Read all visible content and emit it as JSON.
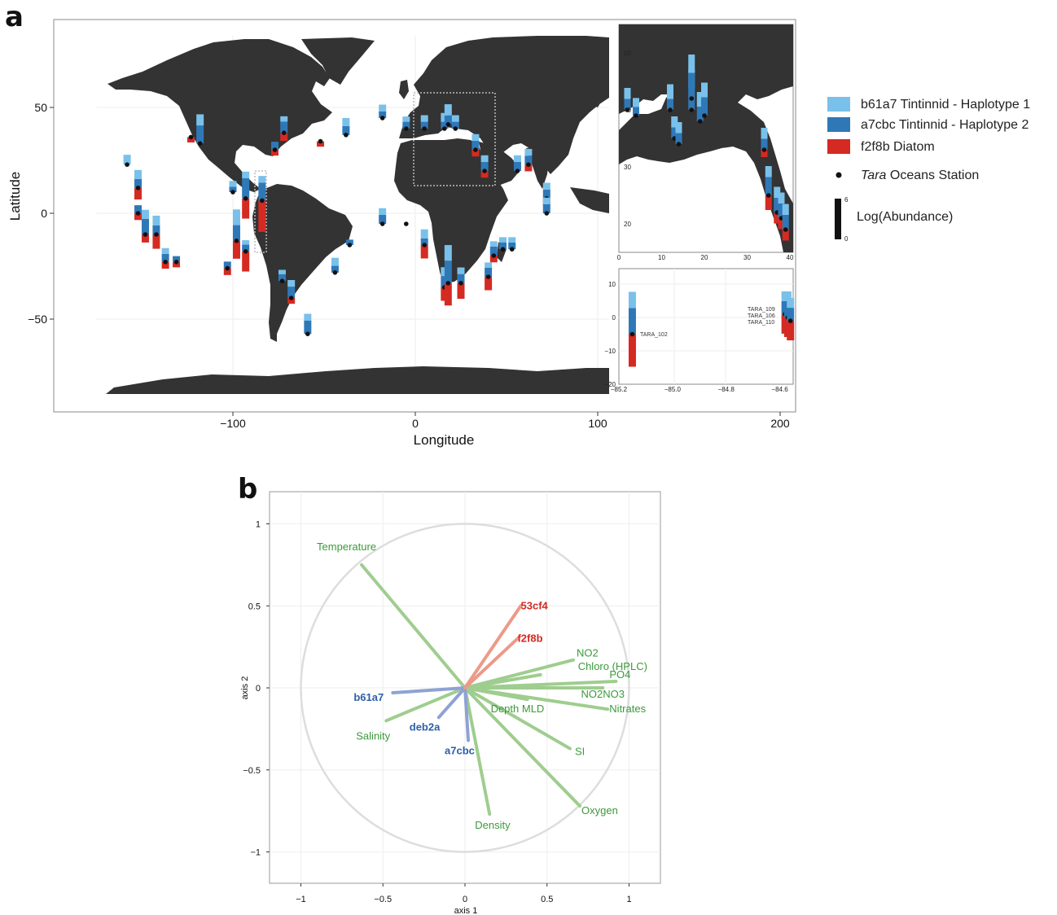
{
  "colors": {
    "haplo1": "#79c1ea",
    "haplo2": "#2f78b8",
    "diatom": "#d42a22",
    "land": "#333333",
    "env": "#3b9a3b",
    "env_line": "#9fcd8f",
    "blue_line": "#8fa2d4",
    "red_line": "#ec9a88"
  },
  "panel_a": {
    "letter": "a",
    "xlabel": "Longitude",
    "ylabel": "Latitude",
    "xticks": [
      "−100",
      "0",
      "100",
      "200"
    ],
    "yticks": [
      "50",
      "0",
      "−50"
    ],
    "inset_top": {
      "xticks": [
        "0",
        "10",
        "20",
        "30",
        "40"
      ],
      "yticks": [
        "50",
        "40",
        "30",
        "20"
      ]
    },
    "inset_bottom": {
      "xticks": [
        "−85.2",
        "−85.0",
        "−84.8",
        "−84.6"
      ],
      "yticks": [
        "10",
        "0",
        "−10",
        "−20"
      ],
      "station_labels": [
        "TARA_102",
        "TARA_109",
        "TARA_106",
        "TARA_110"
      ]
    },
    "legend": {
      "items": [
        {
          "label": "b61a7 Tintinnid - Haplotype 1",
          "color": "#79c1ea"
        },
        {
          "label": "a7cbc Tintinnid - Haplotype 2",
          "color": "#2f78b8"
        },
        {
          "label": "f2f8b Diatom",
          "color": "#d42a22"
        }
      ],
      "station_italic": "Tara",
      "station_rest": " Oceans Station",
      "abundance_label": "Log(Abundance)",
      "abundance_max": "6",
      "abundance_min": "0"
    }
  },
  "panel_b": {
    "letter": "b",
    "xlabel": "axis 1",
    "ylabel": "axis 2",
    "xticks": [
      "−1",
      "−0.5",
      "0",
      "0.5",
      "1"
    ],
    "yticks": [
      "1",
      "0.5",
      "0",
      "−0.5",
      "−1"
    ]
  },
  "chart_data": [
    {
      "type": "bar",
      "description_kind": "map with stacked abundance bars per station",
      "xlabel": "Longitude",
      "ylabel": "Latitude",
      "xlim": [
        -200,
        210
      ],
      "ylim": [
        -85,
        85
      ],
      "series_names": [
        "b61a7 Tintinnid - Haplotype 1",
        "a7cbc Tintinnid - Haplotype 2",
        "f2f8b Diatom"
      ],
      "stations": [
        {
          "lon": -158,
          "lat": 23,
          "v": [
            2.2,
            0,
            0
          ]
        },
        {
          "lon": -152,
          "lat": 12,
          "v": [
            2,
            2,
            2.6
          ]
        },
        {
          "lon": -152,
          "lat": 0,
          "v": [
            0,
            1.8,
            1.5
          ]
        },
        {
          "lon": -148,
          "lat": -10,
          "v": [
            2,
            3.5,
            1.8
          ]
        },
        {
          "lon": -142,
          "lat": -10,
          "v": [
            2.2,
            2,
            3.2
          ]
        },
        {
          "lon": -137,
          "lat": -23,
          "v": [
            1.3,
            1.8,
            1.5
          ]
        },
        {
          "lon": -131,
          "lat": -23,
          "v": [
            0,
            1.3,
            1.2
          ]
        },
        {
          "lon": -123,
          "lat": 36,
          "v": [
            0,
            0,
            1.2
          ]
        },
        {
          "lon": -118,
          "lat": 33,
          "v": [
            2.5,
            4,
            0
          ]
        },
        {
          "lon": -103,
          "lat": -26,
          "v": [
            0,
            1.5,
            1.5
          ]
        },
        {
          "lon": -100,
          "lat": 10,
          "v": [
            1.3,
            1.2,
            0
          ]
        },
        {
          "lon": -98,
          "lat": -13,
          "v": [
            3.5,
            3.5,
            4
          ]
        },
        {
          "lon": -93,
          "lat": -18,
          "v": [
            1,
            1.5,
            4.5
          ]
        },
        {
          "lon": -93,
          "lat": 7,
          "v": [
            1.5,
            4.5,
            4.5
          ]
        },
        {
          "lon": -84,
          "lat": 6,
          "v": [
            1.5,
            4,
            7
          ]
        },
        {
          "lon": -77,
          "lat": 30,
          "v": [
            0,
            1.8,
            1.3
          ]
        },
        {
          "lon": -72,
          "lat": 38,
          "v": [
            1.2,
            2.5,
            1.8
          ]
        },
        {
          "lon": -73,
          "lat": -32,
          "v": [
            1,
            1.5,
            0
          ]
        },
        {
          "lon": -68,
          "lat": -40,
          "v": [
            1.5,
            2.5,
            1.3
          ]
        },
        {
          "lon": -59,
          "lat": -57,
          "v": [
            1.5,
            3,
            0
          ]
        },
        {
          "lon": -52,
          "lat": 34,
          "v": [
            0,
            0,
            1.2
          ]
        },
        {
          "lon": -44,
          "lat": -28,
          "v": [
            1.8,
            1.5,
            0
          ]
        },
        {
          "lon": -38,
          "lat": 37,
          "v": [
            1.8,
            2,
            0
          ]
        },
        {
          "lon": -36,
          "lat": -15,
          "v": [
            0,
            1.2,
            0
          ]
        },
        {
          "lon": -18,
          "lat": -5,
          "v": [
            1.5,
            2,
            0
          ]
        },
        {
          "lon": -18,
          "lat": 45,
          "v": [
            1.5,
            1.5,
            0
          ]
        },
        {
          "lon": -5,
          "lat": -5,
          "v": [
            0,
            0,
            0
          ]
        },
        {
          "lon": -5,
          "lat": 40,
          "v": [
            1.2,
            1.5,
            0
          ]
        },
        {
          "lon": 5,
          "lat": -15,
          "v": [
            2,
            1.5,
            3
          ]
        },
        {
          "lon": 5,
          "lat": 40,
          "v": [
            1.5,
            1.5,
            0
          ]
        },
        {
          "lon": 16,
          "lat": 40,
          "v": [
            2,
            1.5,
            0
          ]
        },
        {
          "lon": 16,
          "lat": -35,
          "v": [
            2,
            2.5,
            3
          ]
        },
        {
          "lon": 18,
          "lat": -33,
          "v": [
            3.5,
            5,
            5
          ]
        },
        {
          "lon": 18,
          "lat": 42,
          "v": [
            2.5,
            2,
            0
          ]
        },
        {
          "lon": 22,
          "lat": 40,
          "v": [
            1.5,
            1.5,
            0
          ]
        },
        {
          "lon": 25,
          "lat": -33,
          "v": [
            1.5,
            2,
            3.5
          ]
        },
        {
          "lon": 33,
          "lat": 30,
          "v": [
            1.5,
            2,
            1.5
          ]
        },
        {
          "lon": 38,
          "lat": 20,
          "v": [
            1.5,
            2,
            1.5
          ]
        },
        {
          "lon": 40,
          "lat": -30,
          "v": [
            1.2,
            2,
            3
          ]
        },
        {
          "lon": 43,
          "lat": -20,
          "v": [
            1.2,
            2,
            1.5
          ]
        },
        {
          "lon": 48,
          "lat": -17,
          "v": [
            1.2,
            1.5,
            0
          ]
        },
        {
          "lon": 53,
          "lat": -17,
          "v": [
            1.2,
            1.5,
            0
          ]
        },
        {
          "lon": 56,
          "lat": 20,
          "v": [
            1.5,
            2,
            0
          ]
        },
        {
          "lon": 62,
          "lat": 23,
          "v": [
            1.5,
            2,
            1.5
          ]
        },
        {
          "lon": 72,
          "lat": 7,
          "v": [
            1.5,
            2,
            1.5
          ]
        },
        {
          "lon": 72,
          "lat": 0,
          "v": [
            1.5,
            2,
            0
          ]
        }
      ]
    },
    {
      "type": "bar",
      "description_kind": "inset map of Mediterranean / Red Sea",
      "xlim": [
        0,
        40
      ],
      "ylim": [
        15,
        55
      ],
      "stations": [
        {
          "lon": 2,
          "lat": 40,
          "v": [
            1.5,
            1.5,
            0
          ]
        },
        {
          "lon": 4,
          "lat": 39,
          "v": [
            1.2,
            1.2,
            0
          ]
        },
        {
          "lon": 12,
          "lat": 40,
          "v": [
            2,
            1.5,
            0
          ]
        },
        {
          "lon": 13,
          "lat": 35,
          "v": [
            1.5,
            1.5,
            0
          ]
        },
        {
          "lon": 14,
          "lat": 34,
          "v": [
            1.5,
            1.5,
            0
          ]
        },
        {
          "lon": 17,
          "lat": 40,
          "v": [
            2.5,
            3,
            0
          ]
        },
        {
          "lon": 17,
          "lat": 42,
          "v": [
            2.5,
            3.5,
            0
          ]
        },
        {
          "lon": 19,
          "lat": 38,
          "v": [
            2,
            2,
            0
          ]
        },
        {
          "lon": 20,
          "lat": 39,
          "v": [
            2,
            2.5,
            0
          ]
        },
        {
          "lon": 34,
          "lat": 33,
          "v": [
            1.5,
            1.5,
            1
          ]
        },
        {
          "lon": 35,
          "lat": 25,
          "v": [
            1.5,
            2.5,
            2
          ]
        },
        {
          "lon": 37,
          "lat": 22,
          "v": [
            1.5,
            2,
            1.5
          ]
        },
        {
          "lon": 38,
          "lat": 21,
          "v": [
            1.5,
            2,
            1.5
          ]
        },
        {
          "lon": 39,
          "lat": 19,
          "v": [
            1.5,
            2,
            1.5
          ]
        }
      ]
    },
    {
      "type": "bar",
      "description_kind": "inset map near Galapagos",
      "xlim": [
        -85.2,
        -84.55
      ],
      "ylim": [
        -20,
        13
      ],
      "stations": [
        {
          "name": "TARA_102",
          "lon": -85.15,
          "lat": -5,
          "v": [
            2.5,
            4,
            5
          ]
        },
        {
          "name": "TARA_109",
          "lon": -84.58,
          "lat": 1,
          "v": [
            1.5,
            2,
            3
          ]
        },
        {
          "name": "TARA_106",
          "lon": -84.57,
          "lat": 0,
          "v": [
            1.5,
            2.5,
            3
          ]
        },
        {
          "name": "TARA_110",
          "lon": -84.56,
          "lat": -1,
          "v": [
            1.5,
            2,
            3
          ]
        }
      ]
    },
    {
      "type": "scatter",
      "description_kind": "ordination biplot with loading arrows",
      "xlabel": "axis 1",
      "ylabel": "axis 2",
      "xlim": [
        -1.2,
        1.2
      ],
      "ylim": [
        -1.2,
        1.2
      ],
      "unit_circle": true,
      "loadings": [
        {
          "label": "Temperature",
          "x": -0.63,
          "y": 0.75,
          "group": "env"
        },
        {
          "label": "NO2",
          "x": 0.66,
          "y": 0.17,
          "group": "env"
        },
        {
          "label": "Chloro (HPLC)",
          "x": 0.46,
          "y": 0.08,
          "group": "env"
        },
        {
          "label": "PO4",
          "x": 0.92,
          "y": 0.04,
          "group": "env"
        },
        {
          "label": "NO2NO3",
          "x": 0.84,
          "y": 0.0,
          "group": "env"
        },
        {
          "label": "Nitrates",
          "x": 0.87,
          "y": -0.13,
          "group": "env"
        },
        {
          "label": "Salinity",
          "x": -0.48,
          "y": -0.2,
          "group": "env"
        },
        {
          "label": "Depth MLD",
          "x": 0.38,
          "y": -0.07,
          "group": "env"
        },
        {
          "label": "SI",
          "x": 0.64,
          "y": -0.37,
          "group": "env"
        },
        {
          "label": "Oxygen",
          "x": 0.7,
          "y": -0.72,
          "group": "env"
        },
        {
          "label": "Density",
          "x": 0.15,
          "y": -0.77,
          "group": "env"
        },
        {
          "label": "b61a7",
          "x": -0.44,
          "y": -0.03,
          "group": "tintinnid"
        },
        {
          "label": "deb2a",
          "x": -0.16,
          "y": -0.18,
          "group": "tintinnid"
        },
        {
          "label": "a7cbc",
          "x": 0.02,
          "y": -0.32,
          "group": "tintinnid"
        },
        {
          "label": "53cf4",
          "x": 0.34,
          "y": 0.5,
          "group": "diatom"
        },
        {
          "label": "f2f8b",
          "x": 0.32,
          "y": 0.3,
          "group": "diatom"
        }
      ]
    }
  ]
}
